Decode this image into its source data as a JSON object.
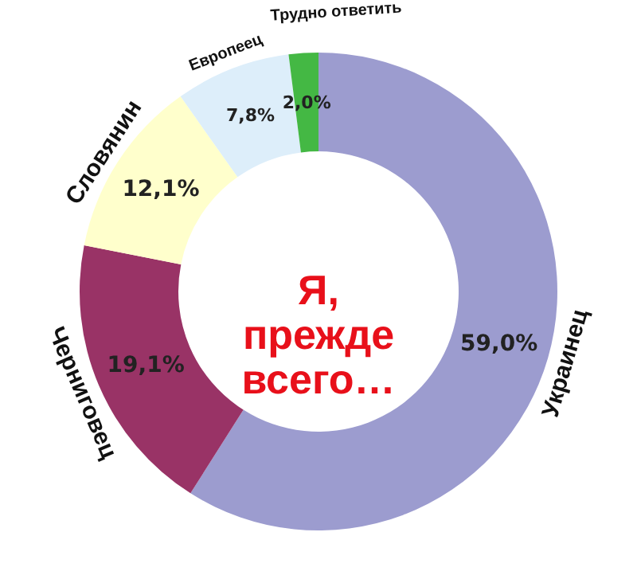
{
  "chart_data": {
    "type": "donut",
    "title": "Я, прежде всего…",
    "categories": [
      "Украинец",
      "Черниговец",
      "Словянин",
      "Европеец",
      "Трудно ответить"
    ],
    "values": [
      59.0,
      19.1,
      12.1,
      7.8,
      2.0
    ],
    "colors": [
      "#9c9ccf",
      "#993366",
      "#ffffcc",
      "#ddeefa",
      "#44b844"
    ],
    "value_labels": [
      "59,0%",
      "19,1%",
      "12,1%",
      "7,8%",
      "2,0%"
    ]
  }
}
